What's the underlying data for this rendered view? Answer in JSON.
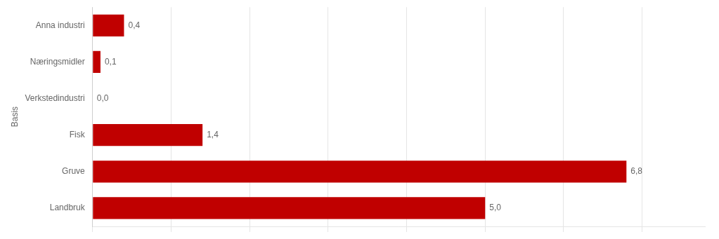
{
  "chart_data": {
    "type": "bar",
    "orientation": "horizontal",
    "categories": [
      "Anna industri",
      "Næringsmidler",
      "Verkstedindustri",
      "Fisk",
      "Gruve",
      "Landbruk"
    ],
    "values": [
      0.4,
      0.1,
      0.0,
      1.4,
      6.8,
      5.0
    ],
    "value_labels": [
      "0,4",
      "0,1",
      "0,0",
      "1,4",
      "6,8",
      "5,0"
    ],
    "data_labels": true,
    "color": "#c00000",
    "ylabel": "Basis",
    "xlim": [
      0,
      7.8
    ],
    "xticks": [
      0,
      1,
      2,
      3,
      4,
      5,
      6,
      7
    ],
    "grid": true,
    "tick_labels": "y"
  }
}
